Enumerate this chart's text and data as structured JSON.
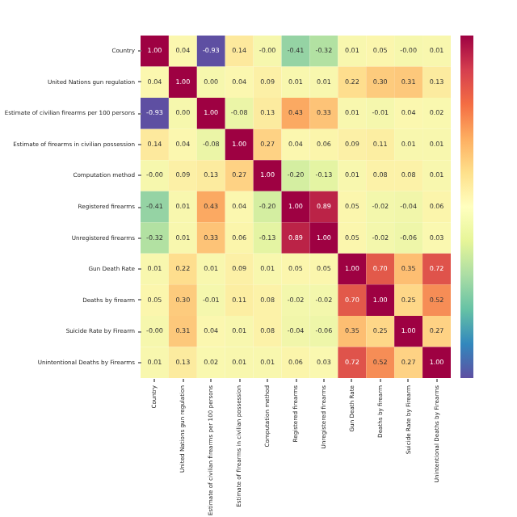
{
  "chart_data": {
    "type": "heatmap",
    "categories": [
      "Country",
      "United Nations gun regulation",
      "Estimate of civilian firearms per 100 persons",
      "Estimate of firearms in civilian possession",
      "Computation method",
      "Registered firearms",
      "Unregistered firearms",
      "Gun Death Rate",
      "Deaths by firearm",
      "Suicide Rate by Firearm",
      "Unintentional Deaths by Firearms"
    ],
    "y_categories": [
      "Country",
      "United Nations gun regulation",
      "Estimate of civilian firearms per 100 persons",
      "Estimate of firearms in civilian possession",
      "Computation method",
      "Registered firearms",
      "Unregistered firearms",
      "Gun Death Rate",
      "Deaths by firearm",
      "Suicide Rate by Firearm",
      "Unintentional Deaths by Firearms"
    ],
    "cells": [
      [
        1.0,
        0.04,
        -0.93,
        0.14,
        -0.0,
        -0.41,
        -0.32,
        0.01,
        0.05,
        -0.0,
        0.01
      ],
      [
        0.04,
        1.0,
        0.0,
        0.04,
        0.09,
        0.01,
        0.01,
        0.22,
        0.3,
        0.31,
        0.13
      ],
      [
        -0.93,
        0.0,
        1.0,
        -0.08,
        0.13,
        0.43,
        0.33,
        0.01,
        -0.01,
        0.04,
        0.02
      ],
      [
        0.14,
        0.04,
        -0.08,
        1.0,
        0.27,
        0.04,
        0.06,
        0.09,
        0.11,
        0.01,
        0.01
      ],
      [
        -0.0,
        0.09,
        0.13,
        0.27,
        1.0,
        -0.2,
        -0.13,
        0.01,
        0.08,
        0.08,
        0.01
      ],
      [
        -0.41,
        0.01,
        0.43,
        0.04,
        -0.2,
        1.0,
        0.89,
        0.05,
        -0.02,
        -0.04,
        0.06
      ],
      [
        -0.32,
        0.01,
        0.33,
        0.06,
        -0.13,
        0.89,
        1.0,
        0.05,
        -0.02,
        -0.06,
        0.03
      ],
      [
        0.01,
        0.22,
        0.01,
        0.09,
        0.01,
        0.05,
        0.05,
        1.0,
        0.7,
        0.35,
        0.72
      ],
      [
        0.05,
        0.3,
        -0.01,
        0.11,
        0.08,
        -0.02,
        -0.02,
        0.7,
        1.0,
        0.25,
        0.52
      ],
      [
        -0.0,
        0.31,
        0.04,
        0.01,
        0.08,
        -0.04,
        -0.06,
        0.35,
        0.25,
        1.0,
        0.27
      ],
      [
        0.01,
        0.13,
        0.02,
        0.01,
        0.01,
        0.06,
        0.03,
        0.72,
        0.52,
        0.27,
        1.0
      ]
    ],
    "cell_labels": [
      [
        "1.00",
        "0.04",
        "-0.93",
        "0.14",
        "-0.00",
        "-0.41",
        "-0.32",
        "0.01",
        "0.05",
        "-0.00",
        "0.01"
      ],
      [
        "0.04",
        "1.00",
        "0.00",
        "0.04",
        "0.09",
        "0.01",
        "0.01",
        "0.22",
        "0.30",
        "0.31",
        "0.13"
      ],
      [
        "-0.93",
        "0.00",
        "1.00",
        "-0.08",
        "0.13",
        "0.43",
        "0.33",
        "0.01",
        "-0.01",
        "0.04",
        "0.02"
      ],
      [
        "0.14",
        "0.04",
        "-0.08",
        "1.00",
        "0.27",
        "0.04",
        "0.06",
        "0.09",
        "0.11",
        "0.01",
        "0.01"
      ],
      [
        "-0.00",
        "0.09",
        "0.13",
        "0.27",
        "1.00",
        "-0.20",
        "-0.13",
        "0.01",
        "0.08",
        "0.08",
        "0.01"
      ],
      [
        "-0.41",
        "0.01",
        "0.43",
        "0.04",
        "-0.20",
        "1.00",
        "0.89",
        "0.05",
        "-0.02",
        "-0.04",
        "0.06"
      ],
      [
        "-0.32",
        "0.01",
        "0.33",
        "0.06",
        "-0.13",
        "0.89",
        "1.00",
        "0.05",
        "-0.02",
        "-0.06",
        "0.03"
      ],
      [
        "0.01",
        "0.22",
        "0.01",
        "0.09",
        "0.01",
        "0.05",
        "0.05",
        "1.00",
        "0.70",
        "0.35",
        "0.72"
      ],
      [
        "0.05",
        "0.30",
        "-0.01",
        "0.11",
        "0.08",
        "-0.02",
        "-0.02",
        "0.70",
        "1.00",
        "0.25",
        "0.52"
      ],
      [
        "-0.00",
        "0.31",
        "0.04",
        "0.01",
        "0.08",
        "-0.04",
        "-0.06",
        "0.35",
        "0.25",
        "1.00",
        "0.27"
      ],
      [
        "0.01",
        "0.13",
        "0.02",
        "0.01",
        "0.01",
        "0.06",
        "0.03",
        "0.72",
        "0.52",
        "0.27",
        "1.00"
      ]
    ]
  }
}
